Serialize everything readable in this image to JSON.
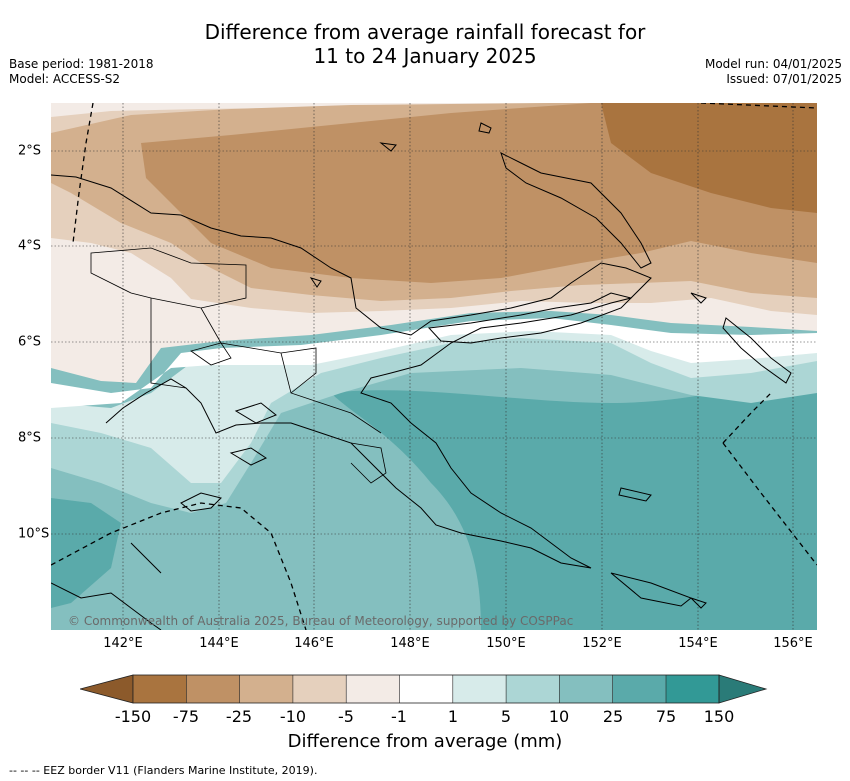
{
  "title": {
    "line1": "Difference from average rainfall forecast for",
    "line2": "11 to 24 January 2025"
  },
  "meta_left": {
    "base_period": "Base period: 1981-2018",
    "model": "Model: ACCESS-S2"
  },
  "meta_right": {
    "model_run": "Model run: 04/01/2025",
    "issued": "Issued: 07/01/2025"
  },
  "map": {
    "copyright": "© Commonwealth of Australia 2025, Bureau of Meteorology, supported by COSPPac",
    "lon_ticks": [
      "142°E",
      "144°E",
      "146°E",
      "148°E",
      "150°E",
      "152°E",
      "154°E",
      "156°E"
    ],
    "lat_ticks": [
      "2°S",
      "4°S",
      "6°S",
      "8°S",
      "10°S"
    ]
  },
  "colorbar": {
    "title": "Difference from average (mm)",
    "ticks": [
      "-150",
      "-75",
      "-25",
      "-10",
      "-5",
      "-1",
      "1",
      "5",
      "10",
      "25",
      "75",
      "150"
    ],
    "colors": {
      "lt_-150": "#8c5a2b",
      "-150_-75": "#a9743f",
      "-75_-25": "#bf9165",
      "-25_-10": "#d3b08e",
      "-10_-5": "#e5d0bd",
      "-5_-1": "#f3ebe6",
      "-1_1": "#ffffff",
      "1_5": "#d7ebea",
      "5_10": "#acd6d5",
      "10_25": "#84bfbf",
      "25_75": "#5aaaaa",
      "75_150": "#329996",
      "gt_150": "#2a7b78"
    }
  },
  "footer": {
    "legend": "-- -- -- EEZ border V11 (Flanders Marine Institute, 2019)."
  }
}
